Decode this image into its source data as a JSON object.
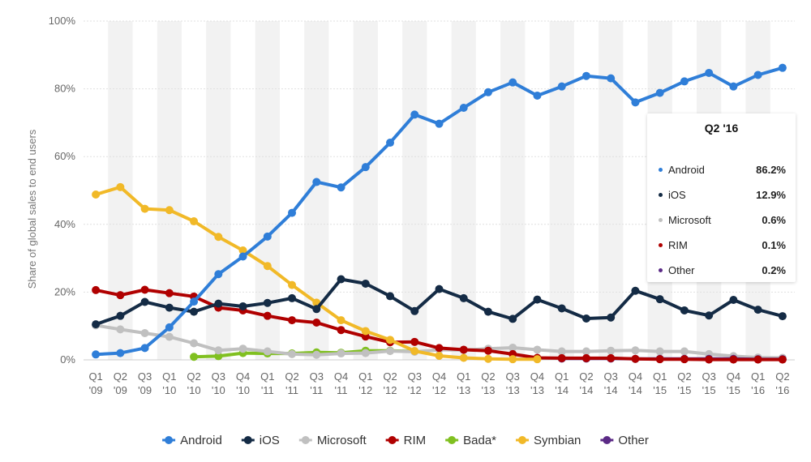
{
  "chart_data": {
    "type": "line",
    "ylabel": "Share of global sales to end users",
    "ylim": [
      0,
      100
    ],
    "y_ticks": [
      "0%",
      "20%",
      "40%",
      "60%",
      "80%",
      "100%"
    ],
    "grid": "horizontal",
    "legend_position": "bottom",
    "categories": [
      [
        "Q1",
        "'09"
      ],
      [
        "Q2",
        "'09"
      ],
      [
        "Q3",
        "'09"
      ],
      [
        "Q1",
        "'10"
      ],
      [
        "Q2",
        "'10"
      ],
      [
        "Q3",
        "'10"
      ],
      [
        "Q4",
        "'10"
      ],
      [
        "Q1",
        "'11"
      ],
      [
        "Q2",
        "'11"
      ],
      [
        "Q3",
        "'11"
      ],
      [
        "Q4",
        "'11"
      ],
      [
        "Q1",
        "'12"
      ],
      [
        "Q2",
        "'12"
      ],
      [
        "Q3",
        "'12"
      ],
      [
        "Q4",
        "'12"
      ],
      [
        "Q1",
        "'13"
      ],
      [
        "Q2",
        "'13"
      ],
      [
        "Q3",
        "'13"
      ],
      [
        "Q4",
        "'13"
      ],
      [
        "Q1",
        "'14"
      ],
      [
        "Q2",
        "'14"
      ],
      [
        "Q3",
        "'14"
      ],
      [
        "Q4",
        "'14"
      ],
      [
        "Q1",
        "'15"
      ],
      [
        "Q2",
        "'15"
      ],
      [
        "Q3",
        "'15"
      ],
      [
        "Q4",
        "'15"
      ],
      [
        "Q1",
        "'16"
      ],
      [
        "Q2",
        "'16"
      ]
    ],
    "series": [
      {
        "name": "Android",
        "color": "#2f7ed8",
        "values": [
          1.6,
          2.0,
          3.5,
          9.6,
          17.2,
          25.3,
          30.5,
          36.4,
          43.4,
          52.5,
          50.9,
          56.9,
          64.1,
          72.4,
          69.7,
          74.4,
          79.0,
          81.9,
          78.0,
          80.7,
          83.8,
          83.1,
          76.0,
          78.8,
          82.2,
          84.7,
          80.7,
          84.1,
          86.2
        ]
      },
      {
        "name": "iOS",
        "color": "#142b45",
        "values": [
          10.5,
          13.0,
          17.1,
          15.4,
          14.2,
          16.6,
          15.8,
          16.8,
          18.2,
          15.0,
          23.8,
          22.5,
          18.8,
          14.4,
          20.9,
          18.2,
          14.2,
          12.1,
          17.8,
          15.2,
          12.2,
          12.5,
          20.4,
          17.9,
          14.6,
          13.1,
          17.7,
          14.8,
          12.9
        ]
      },
      {
        "name": "Microsoft",
        "color": "#c0c0c0",
        "values": [
          10.2,
          9.0,
          7.9,
          6.8,
          4.9,
          2.8,
          3.3,
          2.5,
          1.7,
          1.5,
          1.9,
          2.0,
          2.6,
          2.4,
          3.0,
          2.9,
          3.3,
          3.6,
          3.0,
          2.5,
          2.5,
          2.7,
          2.8,
          2.5,
          2.5,
          1.7,
          1.1,
          0.7,
          0.6
        ]
      },
      {
        "name": "RIM",
        "color": "#b00000",
        "values": [
          20.6,
          19.1,
          20.7,
          19.7,
          18.7,
          15.4,
          14.6,
          13.0,
          11.7,
          11.0,
          8.8,
          6.9,
          5.2,
          5.3,
          3.5,
          3.0,
          2.7,
          1.7,
          0.6,
          0.5,
          0.5,
          0.5,
          0.3,
          0.2,
          0.2,
          0.1,
          0.1,
          0.1,
          0.1
        ]
      },
      {
        "name": "Bada*",
        "color": "#80c020",
        "values": [
          null,
          null,
          null,
          null,
          0.9,
          1.1,
          2.0,
          1.9,
          1.9,
          2.2,
          2.1,
          2.7,
          2.7,
          2.5,
          null,
          null,
          null,
          null,
          null,
          null,
          null,
          null,
          null,
          null,
          null,
          null,
          null,
          null,
          null
        ]
      },
      {
        "name": "Symbian",
        "color": "#f1b928",
        "values": [
          48.8,
          51.0,
          44.6,
          44.2,
          40.9,
          36.3,
          32.3,
          27.7,
          22.1,
          16.9,
          11.7,
          8.5,
          5.9,
          2.6,
          1.2,
          0.6,
          0.3,
          0.2,
          0.2,
          null,
          null,
          null,
          null,
          null,
          null,
          null,
          null,
          null,
          null
        ]
      },
      {
        "name": "Other",
        "color": "#5b2a86",
        "values": [
          null,
          null,
          null,
          null,
          null,
          null,
          null,
          null,
          null,
          null,
          null,
          null,
          null,
          null,
          null,
          null,
          null,
          null,
          null,
          0.4,
          0.4,
          0.4,
          0.3,
          0.3,
          0.3,
          0.3,
          0.3,
          0.2,
          0.2
        ]
      }
    ]
  },
  "tooltip": {
    "title": "Q2 '16",
    "rows": [
      {
        "label": "Android",
        "value": "86.2%",
        "color": "#2f7ed8"
      },
      {
        "label": "iOS",
        "value": "12.9%",
        "color": "#142b45"
      },
      {
        "label": "Microsoft",
        "value": "0.6%",
        "color": "#c0c0c0"
      },
      {
        "label": "RIM",
        "value": "0.1%",
        "color": "#b00000"
      },
      {
        "label": "Other",
        "value": "0.2%",
        "color": "#5b2a86"
      }
    ]
  }
}
